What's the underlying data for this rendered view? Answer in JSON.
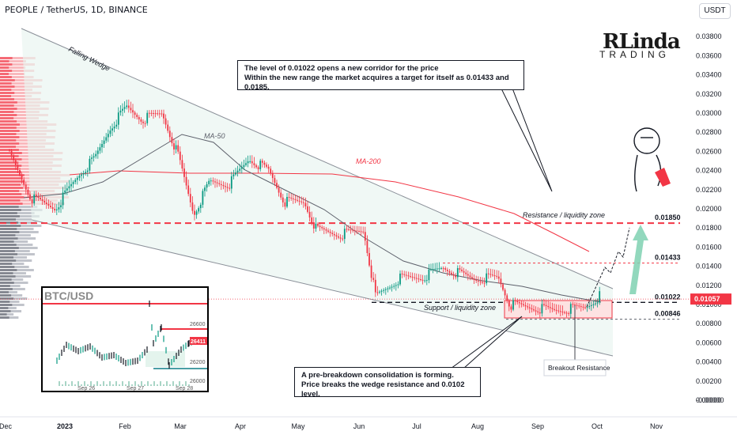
{
  "header": {
    "symbol_title": "PEOPLE / TetherUS, 1D, BINANCE",
    "currency": "USDT"
  },
  "logo": {
    "line1": "RLinda",
    "line2": "TRADING"
  },
  "annotations": {
    "falling_wedge": "Falling Wedge",
    "ma50": "MA-50",
    "ma200": "MA-200",
    "resistance_zone": "Resistance / liquidity zone",
    "support_zone": "Support / liquidity zone",
    "breakout_resistance": "Breakout Resistance",
    "callout_top": "The level of 0.01022 opens a new corridor for the price\nWithin the new range the market acquires a target for itself as 0.01433 and 0.0185.",
    "callout_bottom": "A pre-breakdown consolidation is forming.\nPrice breaks the wedge resistance and 0.0102 level."
  },
  "levels": [
    {
      "value": 0.0185,
      "label": "0.01850",
      "style": "dashed-red"
    },
    {
      "value": 0.01433,
      "label": "0.01433",
      "style": "dashed-red-thin"
    },
    {
      "value": 0.01022,
      "label": "0.01022",
      "style": "dashed-black"
    },
    {
      "value": 0.00846,
      "label": "0.00846",
      "style": "dashed-gray"
    }
  ],
  "current_price": {
    "value": 0.01057,
    "label": "0.01057",
    "color": "#f23645"
  },
  "colors": {
    "up": "#089981",
    "down": "#f23645",
    "ma200": "#f23645",
    "ma50": "#5d606b",
    "zone": "#e8f5f0"
  },
  "chart_data": [
    {
      "type": "candlestick",
      "title": "PEOPLE / TetherUS, 1D, BINANCE",
      "y_axis_ticks": [
        "0.03800",
        "0.03600",
        "0.03400",
        "0.03200",
        "0.03000",
        "0.02800",
        "0.02600",
        "0.02400",
        "0.02200",
        "0.02000",
        "0.01800",
        "0.01600",
        "0.01400",
        "0.01200",
        "0.01000",
        "0.00800",
        "0.00600",
        "0.00400",
        "0.00200",
        "0.00000",
        "-0.00000"
      ],
      "x_axis_ticks": [
        "Dec",
        "2023",
        "Feb",
        "Mar",
        "Apr",
        "May",
        "Jun",
        "Jul",
        "Aug",
        "Sep",
        "Oct",
        "Nov"
      ],
      "ylim": [
        -0.0002,
        0.0405
      ],
      "series_approx_close": {
        "x": [
          "Dec",
          "2023",
          "Feb",
          "Mar",
          "Apr",
          "May",
          "Jun",
          "Jul",
          "Aug",
          "Sep",
          "Oct"
        ],
        "values": [
          0.0195,
          0.0205,
          0.0305,
          0.0245,
          0.0255,
          0.0215,
          0.0125,
          0.0138,
          0.013,
          0.0098,
          0.0105
        ]
      },
      "ma200_approx": {
        "x": [
          "Feb",
          "Mar",
          "Apr",
          "May",
          "Jun",
          "Jul",
          "Aug",
          "Sep",
          "Oct"
        ],
        "values": [
          0.0242,
          0.0238,
          0.0236,
          0.0236,
          0.0232,
          0.0225,
          0.0215,
          0.02,
          0.0155
        ]
      },
      "current_price": 0.01057
    },
    {
      "type": "line",
      "title": "BTC/USD",
      "y_axis_ticks": [
        "26600",
        "26400",
        "26200",
        "26000"
      ],
      "x_axis_ticks": [
        "Sep 26",
        "Sep 27",
        "Sep 28"
      ],
      "last_price_label": "26411"
    }
  ]
}
